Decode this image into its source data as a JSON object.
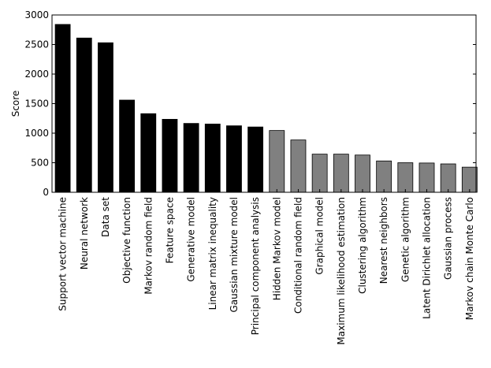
{
  "chart_data": {
    "type": "bar",
    "title": "",
    "xlabel": "",
    "ylabel": "Score",
    "ylim": [
      0,
      3000
    ],
    "yticks": [
      0,
      500,
      1000,
      1500,
      2000,
      2500,
      3000
    ],
    "grid": false,
    "legend": "none",
    "categories": [
      "Support vector machine",
      "Neural network",
      "Data set",
      "Objective function",
      "Markov random field",
      "Feature space",
      "Generative model",
      "Linear matrix inequality",
      "Gaussian mixture model",
      "Principal component analysis",
      "Hidden Markov model",
      "Conditional random field",
      "Graphical model",
      "Maximum likelihood estimation",
      "Clustering algorithm",
      "Nearest neighbors",
      "Genetic algorithm",
      "Latent Dirichlet allocation",
      "Gaussian process",
      "Markov chain Monte Carlo"
    ],
    "values": [
      2840,
      2610,
      2530,
      1560,
      1330,
      1235,
      1165,
      1155,
      1125,
      1105,
      1045,
      885,
      645,
      645,
      630,
      530,
      500,
      495,
      480,
      425
    ],
    "colors": [
      "#000000",
      "#000000",
      "#000000",
      "#000000",
      "#000000",
      "#000000",
      "#000000",
      "#000000",
      "#000000",
      "#000000",
      "#808080",
      "#808080",
      "#808080",
      "#808080",
      "#808080",
      "#808080",
      "#808080",
      "#808080",
      "#808080",
      "#808080"
    ]
  }
}
